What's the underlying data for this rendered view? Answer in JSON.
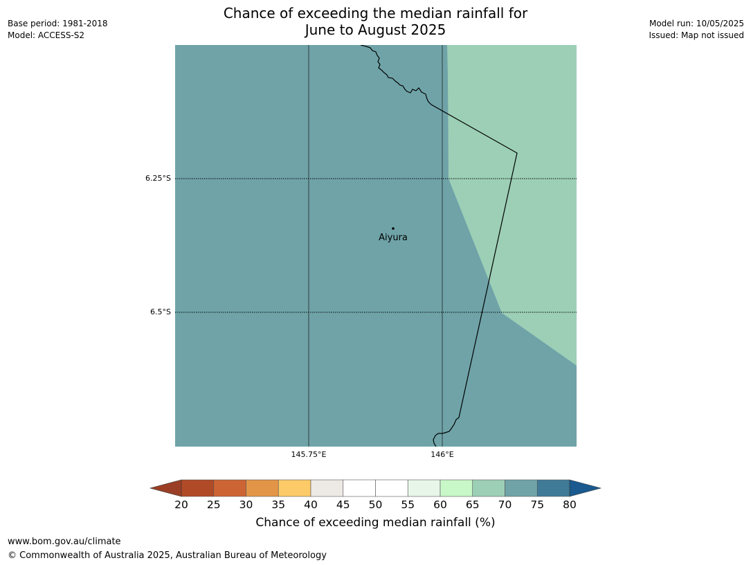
{
  "header": {
    "title_line1": "Chance of exceeding the median rainfall for",
    "title_line2": "June to August 2025",
    "base_period": "Base period: 1981-2018",
    "model": "Model: ACCESS-S2",
    "model_run": "Model run: 10/05/2025",
    "issued": "Issued: Map not issued"
  },
  "map": {
    "lat_labels": [
      "6.25°S",
      "6.5°S"
    ],
    "lon_labels": [
      "145.75°E",
      "146°E"
    ],
    "places": [
      {
        "name": "Aiyura",
        "lat": -6.34,
        "lon": 145.904
      }
    ],
    "background_class": "70-75",
    "highlight_class": "65-70"
  },
  "colorbar": {
    "ticks": [
      "20",
      "25",
      "30",
      "35",
      "40",
      "45",
      "50",
      "55",
      "60",
      "65",
      "70",
      "75",
      "80"
    ],
    "under_color": "#9a3f25",
    "over_color": "#1a5a8e",
    "colors": [
      "#b14a26",
      "#cd6433",
      "#e39547",
      "#fdca68",
      "#ede9e4",
      "#ffffff",
      "#ffffff",
      "#e8f5e9",
      "#c8f7c8",
      "#9ccfb6",
      "#6fa3a8",
      "#3f7a97"
    ],
    "label": "Chance of exceeding median rainfall (%)"
  },
  "footer": {
    "url": "www.bom.gov.au/climate",
    "copyright": "© Commonwealth of Australia 2025, Australian Bureau of Meteorology"
  }
}
